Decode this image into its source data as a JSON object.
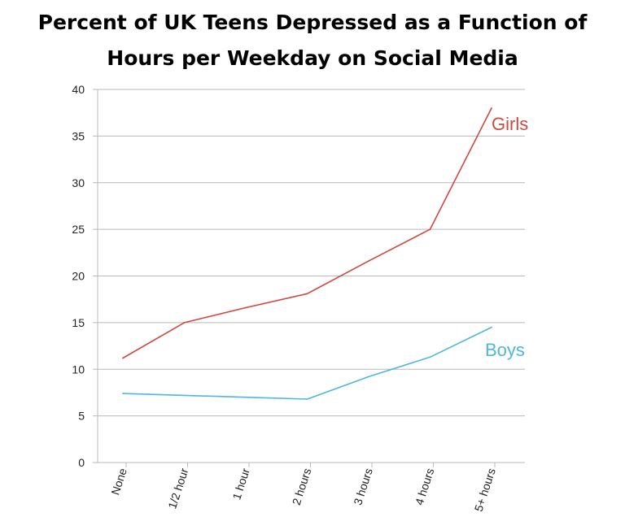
{
  "chart_data": {
    "type": "line",
    "title_line1": "Percent of UK Teens Depressed as a Function of",
    "title_line2": "Hours per Weekday on Social Media",
    "categories": [
      "None",
      "1/2 hour",
      "1 hour",
      "2 hours",
      "3 hours",
      "4 hours",
      "5+ hours"
    ],
    "ylim": [
      0,
      40
    ],
    "yticks": [
      0,
      5,
      10,
      15,
      20,
      25,
      30,
      35,
      40
    ],
    "grid": true,
    "series": [
      {
        "name": "Girls",
        "color": "#d0493f",
        "values": [
          11.2,
          15.0,
          16.6,
          18.1,
          21.6,
          25.0,
          38.0
        ]
      },
      {
        "name": "Boys",
        "color": "#4fb7de",
        "values": [
          7.4,
          7.2,
          7.0,
          6.8,
          9.2,
          11.3,
          14.5
        ]
      }
    ]
  }
}
